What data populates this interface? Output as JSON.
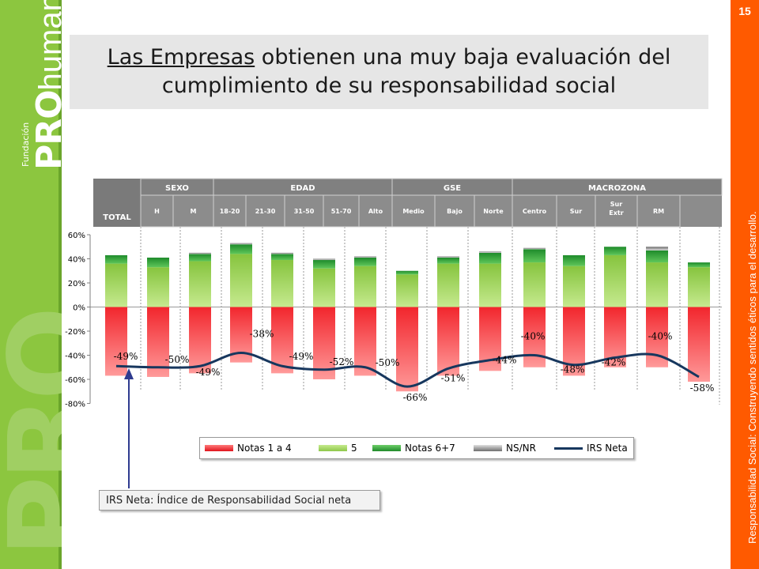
{
  "logo": {
    "foundation": "Fundación",
    "pro": "PRO",
    "humana": "humana",
    "reg": "®",
    "watermark": "PRO"
  },
  "page_number": "15",
  "side_text": "Responsabilidad Social: Construyendo sentidos éticos para el desarrollo.",
  "title": {
    "underlined": "Las Empresas",
    "rest_line1": " obtienen una muy baja evaluación del",
    "line2": "cumplimiento de su responsabilidad social"
  },
  "header": {
    "total_label": "TOTAL",
    "groups": [
      "SEXO",
      "EDAD",
      "GSE",
      "MACROZONA"
    ],
    "columns": [
      "H",
      "M",
      "18-20",
      "21-30",
      "31-50",
      "51-70",
      "Alto",
      "Medio",
      "Bajo",
      "Norte",
      "Centro",
      "Sur",
      "Sur Extr",
      "RM"
    ]
  },
  "note": "IRS Neta: Índice de Responsabilidad Social neta",
  "colors": {
    "red": "#ee1c24",
    "light_green": "#92d050",
    "dark_green": "#2e9e3a",
    "gray": "#a6a6a6",
    "line": "#17375e",
    "header_bg": "#8c8c8c"
  },
  "chart_data": {
    "type": "bar",
    "categories": [
      "TOTAL",
      "H",
      "M",
      "18-20",
      "21-30",
      "31-50",
      "51-70",
      "Alto",
      "Medio",
      "Bajo",
      "Norte",
      "Centro",
      "Sur",
      "Sur Extr",
      "RM"
    ],
    "ylim": [
      -80,
      60
    ],
    "yticks": [
      "60%",
      "40%",
      "20%",
      "0%",
      "-20%",
      "-40%",
      "-60%",
      "-80%"
    ],
    "series": [
      {
        "name": "Notas 1 a 4",
        "values": [
          -57,
          -58,
          -55,
          -46,
          -55,
          -60,
          -57,
          -70,
          -57,
          -53,
          -50,
          -57,
          -50,
          -50,
          -62
        ]
      },
      {
        "name": "5",
        "values": [
          36,
          33,
          38,
          44,
          39,
          32,
          34,
          27,
          36,
          36,
          37,
          34,
          43,
          37,
          33
        ]
      },
      {
        "name": "Notas 6+7",
        "values": [
          7,
          8,
          6,
          8,
          5,
          7,
          7,
          3,
          5,
          9,
          11,
          9,
          7,
          10,
          4
        ]
      },
      {
        "name": "NS/NR",
        "values": [
          0,
          0,
          1,
          1,
          1,
          1,
          1,
          0,
          1,
          1,
          1,
          0,
          0,
          3,
          0
        ]
      },
      {
        "name": "IRS Neta",
        "values": [
          -49,
          -50,
          -49,
          -38,
          -49,
          -52,
          -50,
          -66,
          -51,
          -44,
          -40,
          -48,
          -42,
          -40,
          -58
        ]
      }
    ],
    "data_labels": [
      "-49%",
      "-50%",
      "-49%",
      "-38%",
      "-49%",
      "-52%",
      "-50%",
      "-66%",
      "-51%",
      "-44%",
      "-40%",
      "-48%",
      "-42%",
      "-40%",
      "-58%"
    ]
  },
  "legend": [
    "Notas 1 a 4",
    "5",
    "Notas 6+7",
    "NS/NR",
    "IRS Neta"
  ]
}
